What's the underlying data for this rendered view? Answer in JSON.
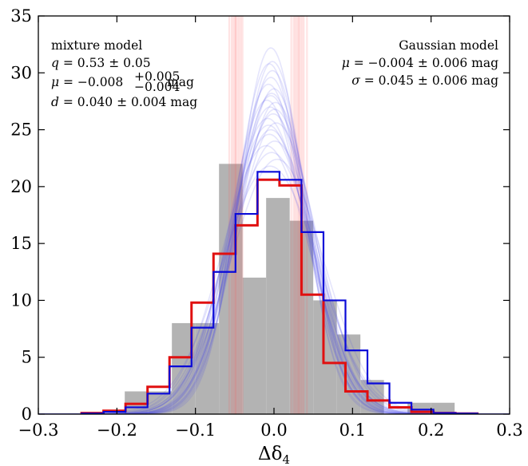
{
  "chart_data": {
    "type": "histogram",
    "xlabel": "Δδ",
    "xlabel_sub": "4",
    "xlim": [
      -0.3,
      0.3
    ],
    "ylim": [
      0,
      35
    ],
    "x_ticks": [
      -0.3,
      -0.2,
      -0.1,
      0.0,
      0.1,
      0.2,
      0.3
    ],
    "x_tick_labels": [
      "−0.3",
      "−0.2",
      "−0.1",
      "0.0",
      "0.1",
      "0.2",
      "0.3"
    ],
    "y_ticks": [
      0,
      5,
      10,
      15,
      20,
      25,
      30,
      35
    ],
    "y_tick_labels": [
      "0",
      "5",
      "10",
      "15",
      "20",
      "25",
      "30",
      "35"
    ],
    "grid": false,
    "data_histogram": {
      "color": "#b3b3b3",
      "bins": [
        {
          "x0": -0.25,
          "x1": -0.22,
          "value": 0
        },
        {
          "x0": -0.22,
          "x1": -0.19,
          "value": 0
        },
        {
          "x0": -0.19,
          "x1": -0.16,
          "value": 2
        },
        {
          "x0": -0.16,
          "x1": -0.13,
          "value": 2
        },
        {
          "x0": -0.13,
          "x1": -0.1,
          "value": 8
        },
        {
          "x0": -0.1,
          "x1": -0.07,
          "value": 8
        },
        {
          "x0": -0.07,
          "x1": -0.04,
          "value": 22
        },
        {
          "x0": -0.04,
          "x1": -0.01,
          "value": 12
        },
        {
          "x0": -0.01,
          "x1": 0.02,
          "value": 19
        },
        {
          "x0": 0.02,
          "x1": 0.05,
          "value": 17
        },
        {
          "x0": 0.05,
          "x1": 0.08,
          "value": 10
        },
        {
          "x0": 0.08,
          "x1": 0.11,
          "value": 7
        },
        {
          "x0": 0.11,
          "x1": 0.14,
          "value": 3
        },
        {
          "x0": 0.14,
          "x1": 0.17,
          "value": 0
        },
        {
          "x0": 0.17,
          "x1": 0.2,
          "value": 1
        },
        {
          "x0": 0.2,
          "x1": 0.23,
          "value": 1
        }
      ]
    },
    "series": [
      {
        "model": "mixture model",
        "style": "step",
        "color": "#e01010",
        "edges": [
          -0.245,
          -0.217,
          -0.189,
          -0.161,
          -0.133,
          -0.105,
          -0.077,
          -0.049,
          -0.021,
          0.007,
          0.035,
          0.063,
          0.091,
          0.119,
          0.147,
          0.175,
          0.203,
          0.231,
          0.259
        ],
        "values": [
          0.1,
          0.3,
          0.9,
          2.4,
          5.0,
          9.8,
          14.1,
          16.6,
          20.6,
          20.1,
          10.5,
          4.5,
          2.0,
          1.2,
          0.6,
          0.2,
          0.1,
          0.05
        ]
      },
      {
        "model": "Gaussian model",
        "style": "step",
        "color": "#0a0ad8",
        "edges": [
          -0.245,
          -0.217,
          -0.189,
          -0.161,
          -0.133,
          -0.105,
          -0.077,
          -0.049,
          -0.021,
          0.007,
          0.035,
          0.063,
          0.091,
          0.119,
          0.147,
          0.175,
          0.203,
          0.231,
          0.259
        ],
        "values": [
          0.05,
          0.2,
          0.6,
          1.8,
          4.2,
          7.6,
          12.5,
          17.6,
          21.3,
          20.6,
          16.0,
          10.0,
          5.6,
          2.7,
          1.0,
          0.4,
          0.1,
          0.05
        ]
      }
    ],
    "gaussian_draws": {
      "color": "#4a4ae8",
      "opacity": 0.14,
      "curves": [
        {
          "mu": -0.004,
          "sigma": 0.041,
          "peak": 32.2
        },
        {
          "mu": -0.006,
          "sigma": 0.043,
          "peak": 30.8
        },
        {
          "mu": -0.002,
          "sigma": 0.044,
          "peak": 30.2
        },
        {
          "mu": -0.004,
          "sigma": 0.045,
          "peak": 29.6
        },
        {
          "mu": -0.007,
          "sigma": 0.046,
          "peak": 29.0
        },
        {
          "mu": 0.0,
          "sigma": 0.046,
          "peak": 28.6
        },
        {
          "mu": -0.003,
          "sigma": 0.047,
          "peak": 28.2
        },
        {
          "mu": -0.009,
          "sigma": 0.048,
          "peak": 27.6
        },
        {
          "mu": 0.002,
          "sigma": 0.048,
          "peak": 27.4
        },
        {
          "mu": -0.005,
          "sigma": 0.049,
          "peak": 27.0
        },
        {
          "mu": -0.001,
          "sigma": 0.05,
          "peak": 26.4
        },
        {
          "mu": -0.008,
          "sigma": 0.051,
          "peak": 26.0
        },
        {
          "mu": 0.003,
          "sigma": 0.052,
          "peak": 25.6
        },
        {
          "mu": -0.004,
          "sigma": 0.053,
          "peak": 25.0
        },
        {
          "mu": -0.006,
          "sigma": 0.054,
          "peak": 24.6
        },
        {
          "mu": 0.001,
          "sigma": 0.055,
          "peak": 24.0
        },
        {
          "mu": -0.01,
          "sigma": 0.056,
          "peak": 23.6
        },
        {
          "mu": -0.003,
          "sigma": 0.058,
          "peak": 23.0
        },
        {
          "mu": 0.004,
          "sigma": 0.059,
          "peak": 22.4
        },
        {
          "mu": -0.005,
          "sigma": 0.061,
          "peak": 21.8
        },
        {
          "mu": -0.002,
          "sigma": 0.043,
          "peak": 31.0
        },
        {
          "mu": -0.007,
          "sigma": 0.052,
          "peak": 25.4
        },
        {
          "mu": 0.001,
          "sigma": 0.05,
          "peak": 26.8
        },
        {
          "mu": -0.004,
          "sigma": 0.047,
          "peak": 28.0
        }
      ]
    },
    "mixture_draws": {
      "color": "#ff5555",
      "opacity": 0.16,
      "positions": [
        -0.057,
        -0.054,
        -0.052,
        -0.05,
        -0.049,
        -0.048,
        -0.046,
        -0.044,
        -0.042,
        -0.04,
        0.022,
        0.025,
        0.027,
        0.029,
        0.031,
        0.032,
        0.034,
        0.036,
        0.038,
        0.042
      ]
    },
    "annotations": {
      "mixture": {
        "title": "mixture model",
        "q_label": "q",
        "q_value": " = 0.53 ± 0.05",
        "mu_label": "μ",
        "mu_value": " = −0.008",
        "mu_sup": "+0.005",
        "mu_sub": "−0.004",
        "mu_unit": " mag",
        "d_label": "d",
        "d_value": " = 0.040 ± 0.004 mag"
      },
      "gaussian": {
        "title": "Gaussian model",
        "mu_label": "μ",
        "mu_value": " = −0.004 ± 0.006 mag",
        "sigma_label": "σ",
        "sigma_value": " = 0.045 ± 0.006 mag"
      }
    }
  }
}
